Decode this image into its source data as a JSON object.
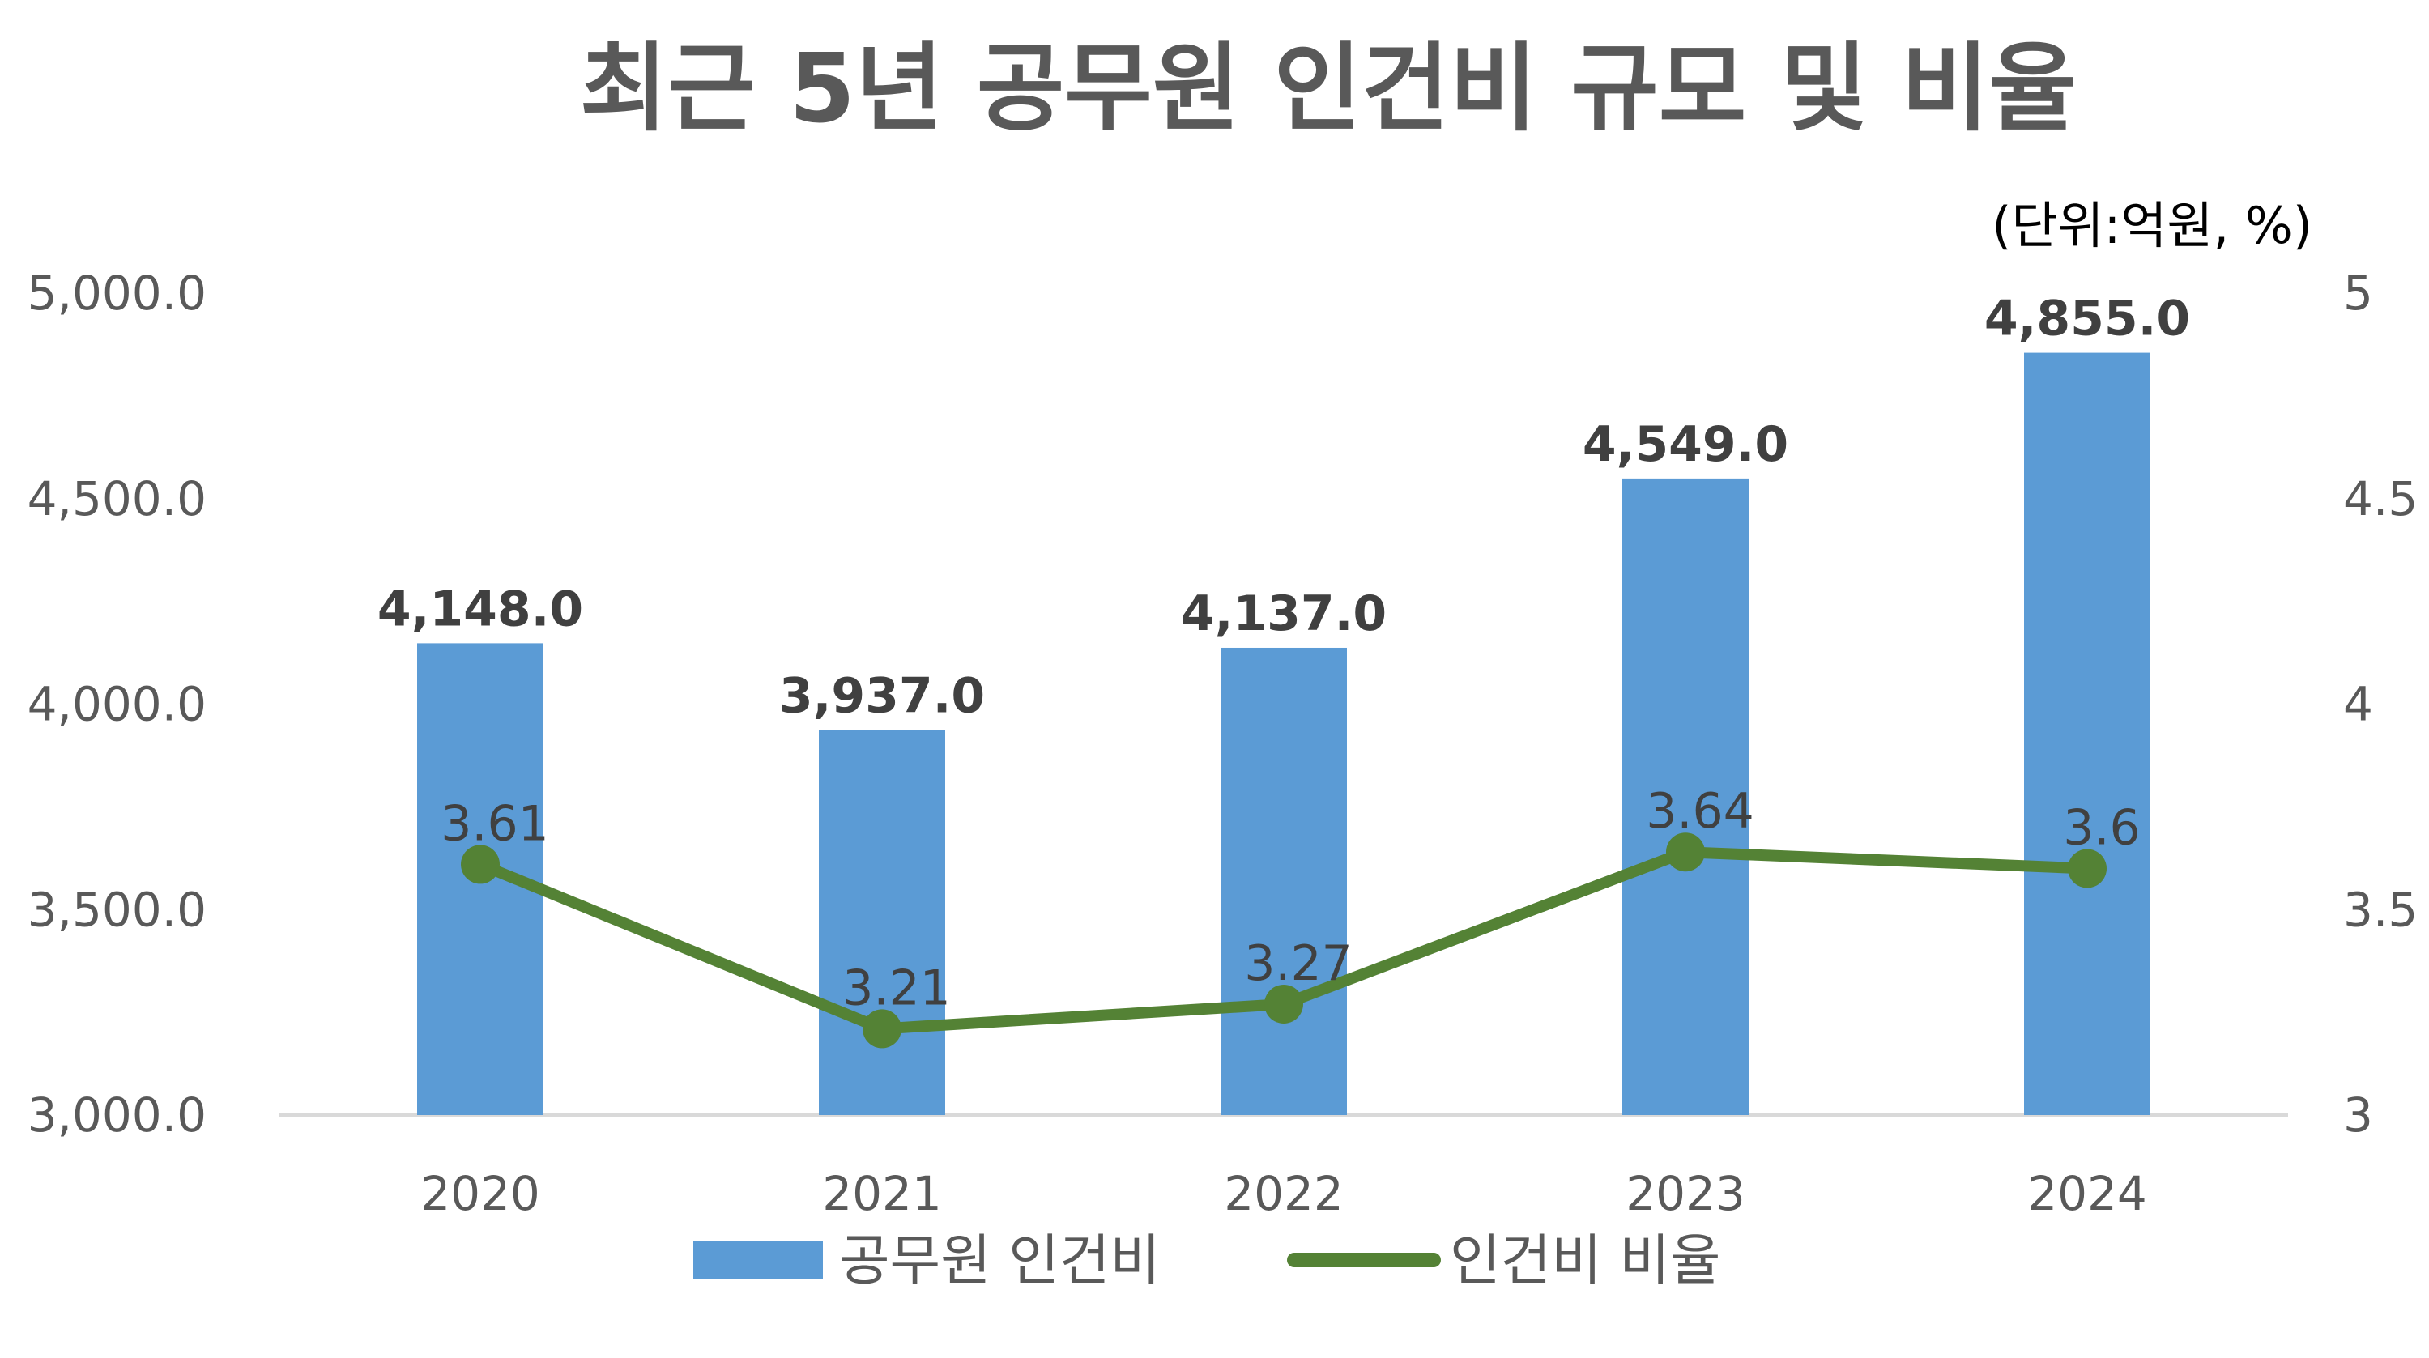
{
  "chart_data": {
    "type": "bar",
    "title": "최근 5년 공무원 인건비 규모 및 비율",
    "unit_note": "(단위:억원, %)",
    "categories": [
      "2020",
      "2021",
      "2022",
      "2023",
      "2024"
    ],
    "series": [
      {
        "name": "공무원 인건비",
        "type": "bar",
        "axis": "left",
        "color": "#5B9BD5",
        "values": [
          4148.0,
          3937.0,
          4137.0,
          4549.0,
          4855.0
        ],
        "labels": [
          "4,148.0",
          "3,937.0",
          "4,137.0",
          "4,549.0",
          "4,855.0"
        ]
      },
      {
        "name": "인건비 비율",
        "type": "line",
        "axis": "right",
        "color": "#548235",
        "values": [
          3.61,
          3.21,
          3.27,
          3.64,
          3.6
        ],
        "labels": [
          "3.61",
          "3.21",
          "3.27",
          "3.64",
          "3.6"
        ]
      }
    ],
    "left_axis": {
      "ylim": [
        3000,
        5000
      ],
      "ticks": [
        "5,000.0",
        "4,500.0",
        "4,000.0",
        "3,500.0",
        "3,000.0"
      ]
    },
    "right_axis": {
      "ylim": [
        3,
        5
      ],
      "ticks": [
        "5",
        "4.5",
        "4",
        "3.5",
        "3"
      ]
    },
    "grid": false,
    "legend_position": "bottom"
  }
}
